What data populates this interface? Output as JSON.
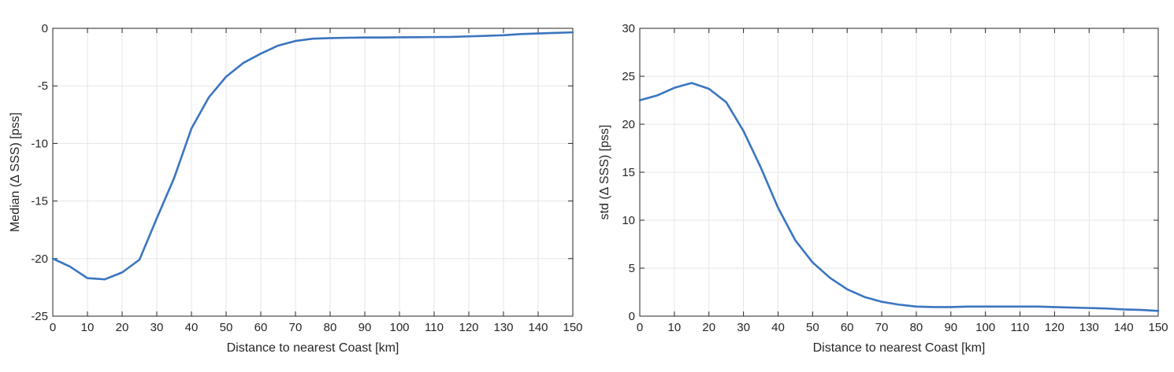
{
  "chart_data": [
    {
      "type": "line",
      "xlabel": "Distance to nearest Coast [km]",
      "ylabel": "Median (Δ SSS) [pss]",
      "xlim": [
        0,
        150
      ],
      "ylim": [
        -25,
        0
      ],
      "xticks": [
        0,
        10,
        20,
        30,
        40,
        50,
        60,
        70,
        80,
        90,
        100,
        110,
        120,
        130,
        140,
        150
      ],
      "yticks": [
        -25,
        -20,
        -15,
        -10,
        -5,
        0
      ],
      "grid": true,
      "line_color": "#3a75c0",
      "series": [
        {
          "x": [
            0,
            5,
            10,
            15,
            20,
            25,
            30,
            35,
            40,
            45,
            50,
            55,
            60,
            65,
            70,
            75,
            80,
            85,
            90,
            95,
            100,
            105,
            110,
            115,
            120,
            125,
            130,
            135,
            140,
            145,
            150
          ],
          "values": [
            -20.0,
            -20.7,
            -21.7,
            -21.8,
            -21.2,
            -20.1,
            -16.5,
            -13.0,
            -8.7,
            -6.0,
            -4.2,
            -3.0,
            -2.2,
            -1.5,
            -1.1,
            -0.9,
            -0.85,
            -0.82,
            -0.8,
            -0.8,
            -0.78,
            -0.77,
            -0.76,
            -0.75,
            -0.7,
            -0.65,
            -0.6,
            -0.5,
            -0.45,
            -0.4,
            -0.35
          ]
        }
      ]
    },
    {
      "type": "line",
      "xlabel": "Distance to nearest Coast [km]",
      "ylabel": "std (Δ SSS) [pss]",
      "xlim": [
        0,
        150
      ],
      "ylim": [
        0,
        30
      ],
      "xticks": [
        0,
        10,
        20,
        30,
        40,
        50,
        60,
        70,
        80,
        90,
        100,
        110,
        120,
        130,
        140,
        150
      ],
      "yticks": [
        0,
        5,
        10,
        15,
        20,
        25,
        30
      ],
      "grid": true,
      "line_color": "#3a75c0",
      "series": [
        {
          "x": [
            0,
            5,
            10,
            15,
            20,
            25,
            30,
            35,
            40,
            45,
            50,
            55,
            60,
            65,
            70,
            75,
            80,
            85,
            90,
            95,
            100,
            105,
            110,
            115,
            120,
            125,
            130,
            135,
            140,
            145,
            150
          ],
          "values": [
            22.5,
            23.0,
            23.8,
            24.3,
            23.7,
            22.3,
            19.3,
            15.5,
            11.3,
            7.9,
            5.6,
            4.0,
            2.8,
            2.0,
            1.5,
            1.2,
            1.0,
            0.95,
            0.95,
            1.0,
            1.0,
            1.0,
            1.0,
            1.0,
            0.95,
            0.9,
            0.85,
            0.8,
            0.7,
            0.65,
            0.55
          ]
        }
      ]
    }
  ]
}
